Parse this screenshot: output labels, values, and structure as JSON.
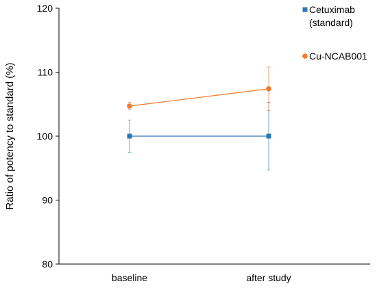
{
  "chart_data": {
    "type": "line",
    "title": "",
    "xlabel": "",
    "ylabel": "Ratio of potency to standard (%)",
    "categories": [
      "baseline",
      "after study"
    ],
    "ylim": [
      80,
      120
    ],
    "yticks": [
      80,
      90,
      100,
      110,
      120
    ],
    "grid": false,
    "legend_position": "top-right",
    "series": [
      {
        "name": "Cetuximab (standard)",
        "name_lines": [
          "Cetuximab",
          "(standard)"
        ],
        "marker": "square",
        "color": "#2e75b6",
        "values": [
          100.0,
          100.0
        ],
        "error_low": [
          97.5,
          94.7
        ],
        "error_high": [
          102.5,
          105.3
        ]
      },
      {
        "name": "Cu-NCAB001",
        "name_lines": [
          "Cu-NCAB001"
        ],
        "marker": "circle",
        "color": "#ed7d31",
        "values": [
          104.7,
          107.4
        ],
        "error_low": [
          104.1,
          104.0
        ],
        "error_high": [
          105.3,
          110.8
        ]
      }
    ]
  }
}
